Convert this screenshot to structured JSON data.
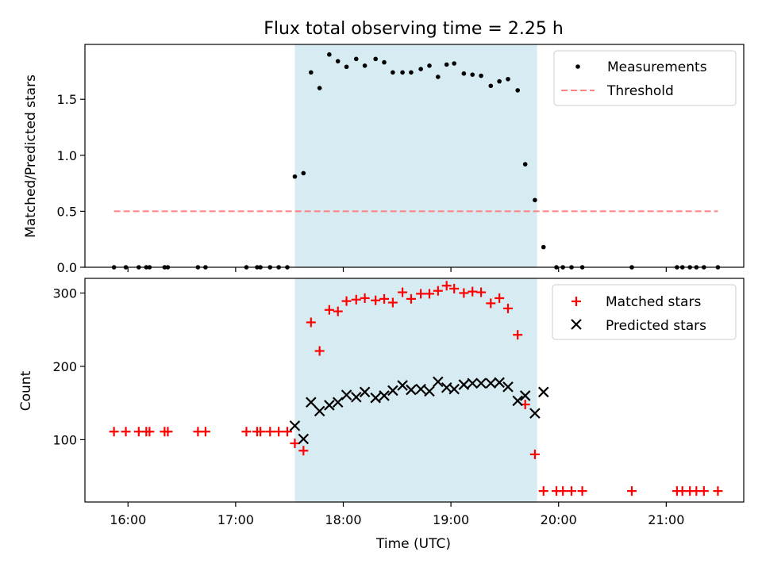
{
  "chart_data": {
    "type": "scatter",
    "title": "Flux total observing time = 2.25 h",
    "xlabel": "Time (UTC)",
    "x_ticks": [
      "16:00",
      "17:00",
      "18:00",
      "19:00",
      "20:00",
      "21:00"
    ],
    "x_tick_hours": [
      16,
      17,
      18,
      19,
      20,
      21
    ],
    "xlim": [
      15.6,
      21.72
    ],
    "observing_window": [
      17.55,
      19.8
    ],
    "colors": {
      "window": "#add8e6",
      "matched": "#ff0000",
      "predicted": "#000000",
      "measurement": "#000000",
      "threshold": "#ff8080"
    },
    "panels": [
      {
        "ylabel": "Matched/Predicted stars",
        "ylim": [
          0,
          1.99
        ],
        "y_ticks": [
          "0.0",
          "0.5",
          "1.0",
          "1.5"
        ],
        "y_tick_values": [
          0,
          0.5,
          1,
          1.5
        ],
        "legend_position": "upper right",
        "series": [
          {
            "name": "Measurements",
            "marker": "dot",
            "points": [
              [
                15.87,
                0
              ],
              [
                15.98,
                0
              ],
              [
                16.1,
                0
              ],
              [
                16.17,
                0
              ],
              [
                16.2,
                0
              ],
              [
                16.34,
                0
              ],
              [
                16.37,
                0
              ],
              [
                16.65,
                0
              ],
              [
                16.72,
                0
              ],
              [
                17.1,
                0
              ],
              [
                17.2,
                0
              ],
              [
                17.23,
                0
              ],
              [
                17.32,
                0
              ],
              [
                17.4,
                0
              ],
              [
                17.48,
                0
              ],
              [
                17.55,
                0.81
              ],
              [
                17.63,
                0.84
              ],
              [
                17.7,
                1.74
              ],
              [
                17.78,
                1.6
              ],
              [
                17.87,
                1.9
              ],
              [
                17.95,
                1.84
              ],
              [
                18.03,
                1.79
              ],
              [
                18.12,
                1.86
              ],
              [
                18.2,
                1.8
              ],
              [
                18.3,
                1.86
              ],
              [
                18.38,
                1.83
              ],
              [
                18.46,
                1.74
              ],
              [
                18.55,
                1.74
              ],
              [
                18.63,
                1.74
              ],
              [
                18.72,
                1.77
              ],
              [
                18.8,
                1.8
              ],
              [
                18.88,
                1.7
              ],
              [
                18.96,
                1.81
              ],
              [
                19.03,
                1.82
              ],
              [
                19.12,
                1.73
              ],
              [
                19.2,
                1.72
              ],
              [
                19.28,
                1.71
              ],
              [
                19.37,
                1.62
              ],
              [
                19.45,
                1.66
              ],
              [
                19.53,
                1.68
              ],
              [
                19.62,
                1.58
              ],
              [
                19.69,
                0.92
              ],
              [
                19.78,
                0.6
              ],
              [
                19.86,
                0.18
              ],
              [
                19.98,
                0
              ],
              [
                20.04,
                0
              ],
              [
                20.12,
                0
              ],
              [
                20.22,
                0
              ],
              [
                20.68,
                0
              ],
              [
                21.1,
                0
              ],
              [
                21.15,
                0
              ],
              [
                21.22,
                0
              ],
              [
                21.28,
                0
              ],
              [
                21.35,
                0
              ],
              [
                21.48,
                0
              ]
            ]
          },
          {
            "name": "Threshold",
            "marker": "dashed-line",
            "points": [
              [
                15.87,
                0.5
              ],
              [
                21.48,
                0.5
              ]
            ]
          }
        ]
      },
      {
        "ylabel": "Count",
        "ylim": [
          15,
          320
        ],
        "y_ticks": [
          "100",
          "200",
          "300"
        ],
        "y_tick_values": [
          100,
          200,
          300
        ],
        "legend_position": "upper right",
        "series": [
          {
            "name": "Matched stars",
            "marker": "plus",
            "points": [
              [
                15.87,
                111
              ],
              [
                15.98,
                111
              ],
              [
                16.1,
                111
              ],
              [
                16.17,
                111
              ],
              [
                16.2,
                111
              ],
              [
                16.34,
                111
              ],
              [
                16.37,
                111
              ],
              [
                16.65,
                111
              ],
              [
                16.72,
                111
              ],
              [
                17.1,
                111
              ],
              [
                17.2,
                111
              ],
              [
                17.23,
                111
              ],
              [
                17.32,
                111
              ],
              [
                17.4,
                111
              ],
              [
                17.48,
                111
              ],
              [
                17.55,
                95
              ],
              [
                17.63,
                85
              ],
              [
                17.7,
                260
              ],
              [
                17.78,
                221
              ],
              [
                17.87,
                277
              ],
              [
                17.95,
                275
              ],
              [
                18.03,
                289
              ],
              [
                18.12,
                291
              ],
              [
                18.2,
                293
              ],
              [
                18.3,
                290
              ],
              [
                18.38,
                292
              ],
              [
                18.46,
                287
              ],
              [
                18.55,
                301
              ],
              [
                18.63,
                292
              ],
              [
                18.72,
                299
              ],
              [
                18.8,
                299
              ],
              [
                18.88,
                303
              ],
              [
                18.96,
                310
              ],
              [
                19.03,
                306
              ],
              [
                19.12,
                300
              ],
              [
                19.2,
                302
              ],
              [
                19.28,
                301
              ],
              [
                19.37,
                286
              ],
              [
                19.45,
                293
              ],
              [
                19.53,
                279
              ],
              [
                19.62,
                243
              ],
              [
                19.69,
                148
              ],
              [
                19.78,
                80
              ],
              [
                19.86,
                30
              ],
              [
                19.98,
                30
              ],
              [
                20.04,
                30
              ],
              [
                20.12,
                30
              ],
              [
                20.22,
                30
              ],
              [
                20.68,
                30
              ],
              [
                21.1,
                30
              ],
              [
                21.15,
                30
              ],
              [
                21.22,
                30
              ],
              [
                21.28,
                30
              ],
              [
                21.35,
                30
              ],
              [
                21.48,
                30
              ]
            ]
          },
          {
            "name": "Predicted stars",
            "marker": "x",
            "points": [
              [
                17.55,
                119
              ],
              [
                17.63,
                101
              ],
              [
                17.7,
                151
              ],
              [
                17.78,
                139
              ],
              [
                17.87,
                147
              ],
              [
                17.95,
                151
              ],
              [
                18.03,
                161
              ],
              [
                18.12,
                158
              ],
              [
                18.2,
                165
              ],
              [
                18.3,
                157
              ],
              [
                18.38,
                160
              ],
              [
                18.46,
                167
              ],
              [
                18.55,
                174
              ],
              [
                18.63,
                168
              ],
              [
                18.72,
                169
              ],
              [
                18.8,
                166
              ],
              [
                18.88,
                179
              ],
              [
                18.96,
                171
              ],
              [
                19.03,
                169
              ],
              [
                19.12,
                175
              ],
              [
                19.2,
                177
              ],
              [
                19.28,
                177
              ],
              [
                19.37,
                177
              ],
              [
                19.45,
                178
              ],
              [
                19.53,
                172
              ],
              [
                19.62,
                153
              ],
              [
                19.69,
                160
              ],
              [
                19.78,
                136
              ],
              [
                19.86,
                165
              ]
            ]
          }
        ]
      }
    ]
  }
}
